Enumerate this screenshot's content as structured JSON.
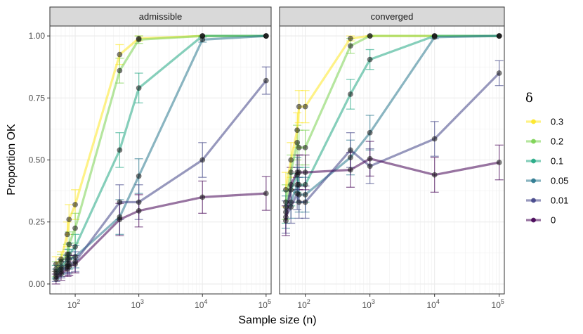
{
  "chart_data": {
    "type": "line",
    "xlabel": "Sample size (n)",
    "ylabel": "Proportion OK",
    "xscale": "log10",
    "xlim": [
      40,
      120000
    ],
    "ylim": [
      -0.04,
      1.04
    ],
    "x": [
      50,
      60,
      75,
      80,
      100,
      500,
      1000,
      10000,
      100000
    ],
    "x_ticks": [
      {
        "value": 100,
        "base": "10",
        "exp": "2"
      },
      {
        "value": 1000,
        "base": "10",
        "exp": "3"
      },
      {
        "value": 10000,
        "base": "10",
        "exp": "4"
      },
      {
        "value": 100000,
        "base": "10",
        "exp": "5"
      }
    ],
    "y_ticks": [
      {
        "value": 0,
        "label": "0.00"
      },
      {
        "value": 0.25,
        "label": "0.25"
      },
      {
        "value": 0.5,
        "label": "0.50"
      },
      {
        "value": 0.75,
        "label": "0.75"
      },
      {
        "value": 1,
        "label": "1.00"
      }
    ],
    "legend": {
      "title": "δ",
      "position": "right",
      "entries": [
        {
          "label": "0.3",
          "color": "#FDE725"
        },
        {
          "label": "0.2",
          "color": "#7AD151"
        },
        {
          "label": "0.1",
          "color": "#22A884"
        },
        {
          "label": "0.05",
          "color": "#2A788E"
        },
        {
          "label": "0.01",
          "color": "#414487"
        },
        {
          "label": "0",
          "color": "#440154"
        }
      ]
    },
    "panels": [
      {
        "title": "admissible",
        "series": [
          {
            "name": "0.3",
            "color": "#FDE725",
            "values": [
              0.08,
              0.1,
              0.2,
              0.26,
              0.32,
              0.925,
              0.99,
              1.0,
              1.0
            ],
            "errors": [
              0.03,
              0.03,
              0.05,
              0.06,
              0.06,
              0.04,
              0.01,
              0.003,
              0.0
            ]
          },
          {
            "name": "0.2",
            "color": "#7AD151",
            "values": [
              0.06,
              0.09,
              0.12,
              0.16,
              0.225,
              0.86,
              0.985,
              1.0,
              1.0
            ],
            "errors": [
              0.03,
              0.03,
              0.04,
              0.05,
              0.06,
              0.05,
              0.015,
              0.003,
              0.0
            ]
          },
          {
            "name": "0.1",
            "color": "#22A884",
            "values": [
              0.05,
              0.07,
              0.1,
              0.12,
              0.15,
              0.54,
              0.79,
              1.0,
              1.0
            ],
            "errors": [
              0.025,
              0.03,
              0.04,
              0.045,
              0.05,
              0.07,
              0.06,
              0.003,
              0.0
            ]
          },
          {
            "name": "0.05",
            "color": "#2A788E",
            "values": [
              0.04,
              0.06,
              0.08,
              0.1,
              0.11,
              0.27,
              0.435,
              0.985,
              1.0
            ],
            "errors": [
              0.02,
              0.03,
              0.035,
              0.04,
              0.045,
              0.07,
              0.07,
              0.01,
              0.0
            ]
          },
          {
            "name": "0.01",
            "color": "#414487",
            "values": [
              0.03,
              0.05,
              0.07,
              0.08,
              0.09,
              0.33,
              0.33,
              0.5,
              0.82
            ],
            "errors": [
              0.02,
              0.025,
              0.03,
              0.035,
              0.04,
              0.07,
              0.07,
              0.07,
              0.055
            ]
          },
          {
            "name": "0",
            "color": "#440154",
            "values": [
              0.02,
              0.04,
              0.06,
              0.07,
              0.08,
              0.26,
              0.295,
              0.35,
              0.365
            ],
            "errors": [
              0.02,
              0.025,
              0.03,
              0.035,
              0.035,
              0.065,
              0.065,
              0.065,
              0.068
            ]
          }
        ]
      },
      {
        "title": "converged",
        "series": [
          {
            "name": "0.3",
            "color": "#FDE725",
            "values": [
              0.38,
              0.5,
              0.62,
              0.715,
              0.715,
              0.99,
              1.0,
              1.0,
              1.0
            ],
            "errors": [
              0.07,
              0.07,
              0.07,
              0.065,
              0.065,
              0.01,
              0.003,
              0.0,
              0.0
            ]
          },
          {
            "name": "0.2",
            "color": "#7AD151",
            "values": [
              0.33,
              0.45,
              0.57,
              0.55,
              0.55,
              0.96,
              1.0,
              1.0,
              1.0
            ],
            "errors": [
              0.07,
              0.07,
              0.07,
              0.07,
              0.07,
              0.03,
              0.003,
              0.0,
              0.0
            ]
          },
          {
            "name": "0.1",
            "color": "#22A884",
            "values": [
              0.31,
              0.38,
              0.44,
              0.4,
              0.4,
              0.765,
              0.905,
              1.0,
              1.0
            ],
            "errors": [
              0.065,
              0.065,
              0.07,
              0.07,
              0.07,
              0.06,
              0.04,
              0.003,
              0.0
            ]
          },
          {
            "name": "0.05",
            "color": "#2A788E",
            "values": [
              0.29,
              0.33,
              0.4,
              0.36,
              0.36,
              0.51,
              0.61,
              0.995,
              1.0
            ],
            "errors": [
              0.065,
              0.065,
              0.07,
              0.07,
              0.07,
              0.07,
              0.07,
              0.006,
              0.0
            ]
          },
          {
            "name": "0.01",
            "color": "#414487",
            "values": [
              0.27,
              0.31,
              0.365,
              0.33,
              0.33,
              0.54,
              0.475,
              0.585,
              0.85
            ],
            "errors": [
              0.065,
              0.065,
              0.065,
              0.065,
              0.065,
              0.07,
              0.07,
              0.07,
              0.05
            ]
          },
          {
            "name": "0",
            "color": "#440154",
            "values": [
              0.255,
              0.4,
              0.45,
              0.45,
              0.45,
              0.46,
              0.505,
              0.44,
              0.49
            ],
            "errors": [
              0.06,
              0.07,
              0.07,
              0.07,
              0.07,
              0.07,
              0.07,
              0.07,
              0.07
            ]
          }
        ]
      }
    ]
  }
}
